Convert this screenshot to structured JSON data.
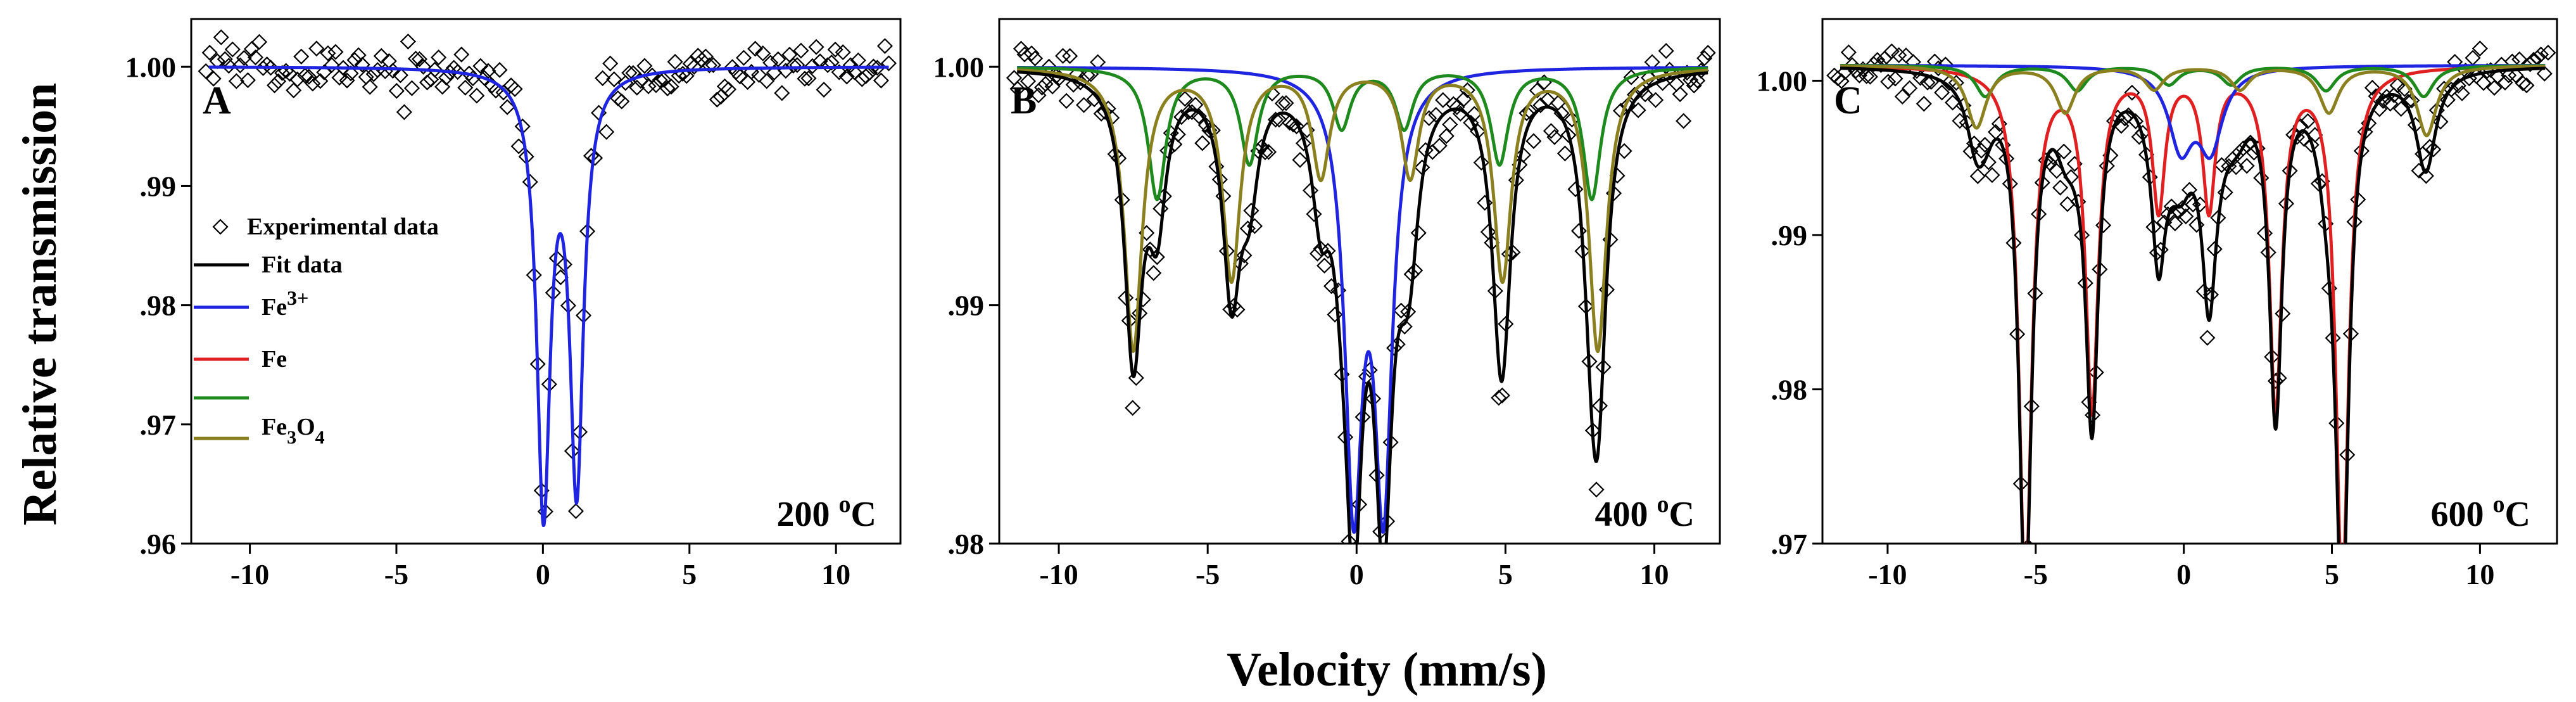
{
  "figure": {
    "ylabel": "Relative transmission",
    "xlabel": "Velocity (mm/s)"
  },
  "legend": {
    "items": [
      {
        "key": "exp",
        "label": "Experimental data",
        "type": "marker",
        "color": "#000000"
      },
      {
        "key": "fit",
        "label": "Fit data",
        "type": "line",
        "color": "#000000"
      },
      {
        "key": "fe3",
        "label": "Fe3+",
        "type": "line",
        "color": "#1f24e0"
      },
      {
        "key": "fe",
        "label": "Fe",
        "type": "line",
        "color": "#e02020"
      },
      {
        "key": "fe3o4_green",
        "label": "",
        "type": "line",
        "color": "#1e8a1e"
      },
      {
        "key": "fe3o4",
        "label": "Fe3O4",
        "type": "line",
        "color": "#8a8020"
      }
    ]
  },
  "chart_data": [
    {
      "type": "scatter",
      "panel": "A",
      "temperature": "200 °C",
      "title": "",
      "xlabel": "Velocity (mm/s)",
      "ylabel": "Relative transmission",
      "xlim": [
        -12,
        12.2
      ],
      "ylim": [
        0.96,
        1.004
      ],
      "xticks": [
        -10,
        -5,
        0,
        5,
        10
      ],
      "xtick_labels": [
        "-10",
        "-5",
        "0",
        "5",
        "10"
      ],
      "yticks": [
        0.96,
        0.97,
        0.98,
        0.99,
        1.0
      ],
      "ytick_labels": [
        ".96",
        ".97",
        ".98",
        ".99",
        "1.00"
      ],
      "experimental": {
        "x_range": [
          -11.5,
          11.8
        ],
        "points": 180,
        "noise": 0.0011
      },
      "series": [
        {
          "name": "Fe3+",
          "color": "#1f24e0",
          "baseline": 1.0,
          "lines": [
            {
              "pos": 0.02,
              "depth": 0.0365,
              "width": 0.28
            },
            {
              "pos": 1.15,
              "depth": 0.0345,
              "width": 0.28
            }
          ]
        }
      ]
    },
    {
      "type": "scatter",
      "panel": "B",
      "temperature": "400 °C",
      "title": "",
      "xlabel": "Velocity (mm/s)",
      "ylabel": "",
      "xlim": [
        -12,
        12.2
      ],
      "ylim": [
        0.98,
        1.002
      ],
      "xticks": [
        -10,
        -5,
        0,
        5,
        10
      ],
      "xtick_labels": [
        "-10",
        "-5",
        "0",
        "5",
        "10"
      ],
      "yticks": [
        0.98,
        0.99,
        1.0
      ],
      "ytick_labels": [
        ".98",
        ".99",
        "1.00"
      ],
      "experimental": {
        "x_range": [
          -11.5,
          11.8
        ],
        "points": 200,
        "noise": 0.0006
      },
      "series": [
        {
          "name": "Fe3+",
          "color": "#1f24e0",
          "baseline": 1.0,
          "lines": [
            {
              "pos": -0.1,
              "depth": 0.0175,
              "width": 0.36
            },
            {
              "pos": 0.9,
              "depth": 0.0175,
              "width": 0.36
            }
          ]
        },
        {
          "name": "Fe3O4 (A)",
          "color": "#1e8a1e",
          "baseline": 1.0,
          "lines": [
            {
              "pos": -6.7,
              "depth": 0.0055,
              "width": 0.36
            },
            {
              "pos": -3.6,
              "depth": 0.004,
              "width": 0.36
            },
            {
              "pos": -0.5,
              "depth": 0.0025,
              "width": 0.36
            },
            {
              "pos": 1.6,
              "depth": 0.0025,
              "width": 0.36
            },
            {
              "pos": 4.8,
              "depth": 0.004,
              "width": 0.36
            },
            {
              "pos": 7.9,
              "depth": 0.0055,
              "width": 0.36
            }
          ]
        },
        {
          "name": "Fe3O4 (B)",
          "color": "#8a8020",
          "baseline": 1.0,
          "lines": [
            {
              "pos": -7.5,
              "depth": 0.0118,
              "width": 0.36
            },
            {
              "pos": -4.2,
              "depth": 0.0088,
              "width": 0.36
            },
            {
              "pos": -1.2,
              "depth": 0.0045,
              "width": 0.36
            },
            {
              "pos": 1.8,
              "depth": 0.0045,
              "width": 0.36
            },
            {
              "pos": 4.9,
              "depth": 0.0088,
              "width": 0.36
            },
            {
              "pos": 8.1,
              "depth": 0.0118,
              "width": 0.36
            }
          ]
        },
        {
          "name": "Fit data",
          "color": "#000000",
          "baseline": 1.0,
          "sum_of": [
            0,
            1,
            2
          ]
        }
      ]
    },
    {
      "type": "scatter",
      "panel": "C",
      "temperature": "600 °C",
      "title": "",
      "xlabel": "Velocity (mm/s)",
      "ylabel": "",
      "xlim": [
        -12.2,
        12.6
      ],
      "ylim": [
        0.97,
        1.004
      ],
      "xticks": [
        -10,
        -5,
        0,
        5,
        10
      ],
      "xtick_labels": [
        "-10",
        "-5",
        "0",
        "5",
        "10"
      ],
      "yticks": [
        0.97,
        0.98,
        0.99,
        1.0
      ],
      "ytick_labels": [
        ".97",
        ".98",
        ".99",
        "1.00"
      ],
      "experimental": {
        "x_range": [
          -11.8,
          12.3
        ],
        "points": 200,
        "noise": 0.0008
      },
      "series": [
        {
          "name": "Fe",
          "color": "#e02020",
          "baseline": 1.001,
          "lines": [
            {
              "pos": -5.35,
              "depth": 0.034,
              "width": 0.26
            },
            {
              "pos": -3.1,
              "depth": 0.022,
              "width": 0.26
            },
            {
              "pos": -0.85,
              "depth": 0.009,
              "width": 0.26
            },
            {
              "pos": 0.85,
              "depth": 0.009,
              "width": 0.26
            },
            {
              "pos": 3.1,
              "depth": 0.022,
              "width": 0.26
            },
            {
              "pos": 5.35,
              "depth": 0.034,
              "width": 0.26
            }
          ]
        },
        {
          "name": "Fe3+",
          "color": "#1f24e0",
          "baseline": 1.001,
          "lines": [
            {
              "pos": -0.1,
              "depth": 0.005,
              "width": 0.5
            },
            {
              "pos": 0.9,
              "depth": 0.005,
              "width": 0.5
            }
          ]
        },
        {
          "name": "Fe3O4 (A)",
          "color": "#1e8a1e",
          "baseline": 1.001,
          "lines": [
            {
              "pos": -6.7,
              "depth": 0.002,
              "width": 0.4
            },
            {
              "pos": -3.6,
              "depth": 0.0016,
              "width": 0.4
            },
            {
              "pos": -0.5,
              "depth": 0.0012,
              "width": 0.4
            },
            {
              "pos": 1.6,
              "depth": 0.0012,
              "width": 0.4
            },
            {
              "pos": 4.8,
              "depth": 0.0016,
              "width": 0.4
            },
            {
              "pos": 8.1,
              "depth": 0.002,
              "width": 0.4
            }
          ]
        },
        {
          "name": "Fe3O4 (B)",
          "color": "#8a8020",
          "baseline": 1.001,
          "lines": [
            {
              "pos": -7.0,
              "depth": 0.004,
              "width": 0.4
            },
            {
              "pos": -4.0,
              "depth": 0.003,
              "width": 0.4
            },
            {
              "pos": -1.0,
              "depth": 0.0015,
              "width": 0.4
            },
            {
              "pos": 1.9,
              "depth": 0.0015,
              "width": 0.4
            },
            {
              "pos": 4.9,
              "depth": 0.003,
              "width": 0.4
            },
            {
              "pos": 8.2,
              "depth": 0.0045,
              "width": 0.4
            }
          ]
        },
        {
          "name": "Fit data",
          "color": "#000000",
          "baseline": 1.001,
          "sum_of": [
            0,
            1,
            2,
            3
          ]
        }
      ]
    }
  ]
}
